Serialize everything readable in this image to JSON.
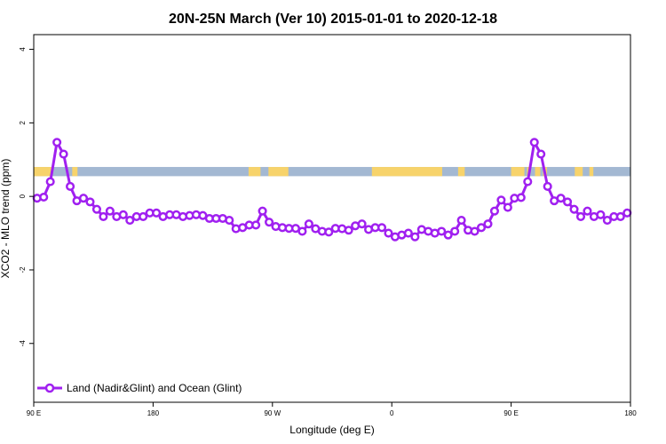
{
  "chart_data": {
    "type": "line",
    "title": "20N-25N March (Ver 10)   2015-01-01 to 2020-12-18",
    "xlabel": "Longitude (deg E)",
    "ylabel": "XCO2 - MLO trend (ppm)",
    "x_ticks": [
      {
        "value": 90,
        "label": "90 E"
      },
      {
        "value": 180,
        "label": "180"
      },
      {
        "value": 270,
        "label": "90 W"
      },
      {
        "value": 360,
        "label": "0"
      },
      {
        "value": 450,
        "label": "90 E"
      },
      {
        "value": 540,
        "label": "180"
      }
    ],
    "y_ticks": [
      {
        "value": -4,
        "label": "-4"
      },
      {
        "value": -2,
        "label": "-2"
      },
      {
        "value": 0,
        "label": "0"
      },
      {
        "value": 2,
        "label": "2"
      },
      {
        "value": 4,
        "label": "4"
      }
    ],
    "xlim": [
      90,
      540
    ],
    "ylim": [
      -5.6,
      4.4
    ],
    "grid": false,
    "legend_position": "bottom-left",
    "land_ocean_band": {
      "y_range": [
        0.55,
        0.8
      ],
      "ocean_color": "#a3b8d2",
      "land_color": "#f7d36b",
      "land_segments": [
        [
          90,
          104
        ],
        [
          119,
          123
        ],
        [
          252,
          261
        ],
        [
          267,
          282
        ],
        [
          345,
          398
        ],
        [
          410,
          415
        ],
        [
          450,
          460
        ],
        [
          462,
          464
        ],
        [
          468,
          472
        ],
        [
          474,
          477
        ],
        [
          498,
          504
        ],
        [
          509,
          512
        ]
      ]
    },
    "series": [
      {
        "name": "Land (Nadir&Glint) and Ocean (Glint)",
        "color": "#a020f0",
        "x": [
          92.5,
          97.5,
          102.5,
          107.5,
          112.5,
          117.5,
          122.5,
          127.5,
          132.5,
          137.5,
          142.5,
          147.5,
          152.5,
          157.5,
          162.5,
          167.5,
          172.5,
          177.5,
          182.5,
          187.5,
          192.5,
          197.5,
          202.5,
          207.5,
          212.5,
          217.5,
          222.5,
          227.5,
          232.5,
          237.5,
          242.5,
          247.5,
          252.5,
          257.5,
          262.5,
          267.5,
          272.5,
          277.5,
          282.5,
          287.5,
          292.5,
          297.5,
          302.5,
          307.5,
          312.5,
          317.5,
          322.5,
          327.5,
          332.5,
          337.5,
          342.5,
          347.5,
          352.5,
          357.5,
          362.5,
          367.5,
          372.5,
          377.5,
          382.5,
          387.5,
          392.5,
          397.5,
          402.5,
          407.5,
          412.5,
          417.5,
          422.5,
          427.5,
          432.5,
          437.5,
          442.5,
          447.5,
          452.5,
          457.5,
          462.5,
          467.5,
          472.5,
          477.5,
          482.5,
          487.5,
          492.5,
          497.5,
          502.5,
          507.5,
          512.5,
          517.5,
          522.5,
          527.5,
          532.5,
          537.5
        ],
        "y": [
          -0.05,
          -0.02,
          0.4,
          1.47,
          1.15,
          0.27,
          -0.12,
          -0.05,
          -0.15,
          -0.35,
          -0.55,
          -0.4,
          -0.55,
          -0.5,
          -0.65,
          -0.55,
          -0.55,
          -0.45,
          -0.45,
          -0.55,
          -0.5,
          -0.5,
          -0.55,
          -0.52,
          -0.5,
          -0.52,
          -0.6,
          -0.6,
          -0.6,
          -0.65,
          -0.88,
          -0.85,
          -0.78,
          -0.78,
          -0.4,
          -0.7,
          -0.82,
          -0.85,
          -0.87,
          -0.87,
          -0.95,
          -0.75,
          -0.88,
          -0.95,
          -0.97,
          -0.87,
          -0.88,
          -0.92,
          -0.8,
          -0.75,
          -0.9,
          -0.85,
          -0.85,
          -1.0,
          -1.1,
          -1.05,
          -1.0,
          -1.1,
          -0.9,
          -0.95,
          -1.0,
          -0.95,
          -1.05,
          -0.95,
          -0.65,
          -0.92,
          -0.95,
          -0.85,
          -0.75,
          -0.4,
          -0.1,
          -0.3,
          -0.05,
          -0.03,
          0.4,
          1.47,
          1.15,
          0.27,
          -0.12,
          -0.05,
          -0.15,
          -0.35,
          -0.55,
          -0.4,
          -0.55,
          -0.5,
          -0.65,
          -0.55,
          -0.55,
          -0.45
        ]
      }
    ]
  }
}
